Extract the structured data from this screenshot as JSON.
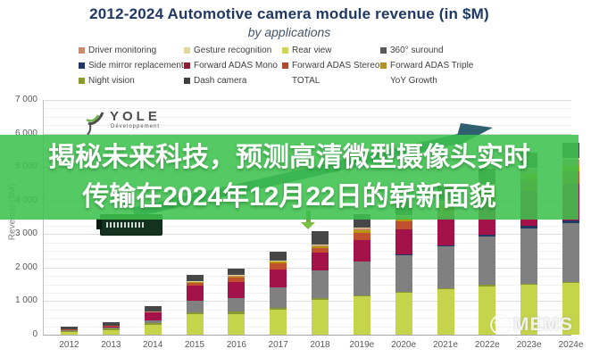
{
  "header": {
    "title": "2012-2024 Automotive camera module revenue (in $M)",
    "subtitle": "by applications"
  },
  "legend": {
    "items": [
      {
        "label": "Driver monitoring",
        "color": "#c98a70"
      },
      {
        "label": "Gesture recognition",
        "color": "#ded9a2"
      },
      {
        "label": "Rear view",
        "color": "#cdd65c"
      },
      {
        "label": "360° suround",
        "color": "#595959"
      },
      {
        "label": "Side mirror replacement",
        "color": "#1f3864"
      },
      {
        "label": "Forward ADAS Mono",
        "color": "#8c2136"
      },
      {
        "label": "Forward ADAS Stereo",
        "color": "#b04a2c"
      },
      {
        "label": "Forward ADAS Triple",
        "color": "#b0912c"
      },
      {
        "label": "Night vision",
        "color": "#8a9a33"
      },
      {
        "label": "Dash camera",
        "color": "#404040"
      },
      {
        "label": "TOTAL",
        "color": null
      },
      {
        "label": "YoY Growth",
        "color": null
      }
    ]
  },
  "axes": {
    "y_title": "Revenue ($M)",
    "y_tick_labels": [
      "0",
      "1 000",
      "2 000",
      "3 000",
      "4 000",
      "5 000",
      "6 000",
      "7 000"
    ],
    "x_tick_labels": [
      "2012",
      "2013",
      "2014",
      "2015",
      "2016",
      "2017",
      "2018",
      "2019e",
      "2020e",
      "2021e",
      "2022e",
      "2023e",
      "2024e"
    ]
  },
  "logo": {
    "name": "YOLE",
    "subtitle": "Développement"
  },
  "overlay": {
    "line1": "揭秘未来科技，预测高清微型摄像头实时",
    "line2": "传输在2024年12月22日的崭新面貌",
    "color": "#3ec24d"
  },
  "watermark": {
    "label": "MEMS"
  },
  "chart_data": {
    "type": "bar",
    "variant": "stacked",
    "title": "2012-2024 Automotive camera module revenue (in $M)",
    "subtitle": "by applications",
    "xlabel": "",
    "ylabel": "Revenue ($M)",
    "ylim": [
      0,
      7000
    ],
    "ytick_interval": 1000,
    "grid": true,
    "legend_position": "top",
    "values_note": "middle of chart hidden by overlay banner; values estimated from visible pixels",
    "categories": [
      "2012",
      "2013",
      "2014",
      "2015",
      "2016",
      "2017",
      "2018",
      "2019e",
      "2020e",
      "2021e",
      "2022e",
      "2023e",
      "2024e"
    ],
    "series": [
      {
        "name": "Rear view",
        "color": "#c5d44b",
        "values": [
          90,
          140,
          290,
          600,
          620,
          750,
          1040,
          1150,
          1250,
          1350,
          1450,
          1500,
          1550
        ]
      },
      {
        "name": "Night vision",
        "color": "#8a9a33",
        "values": [
          40,
          50,
          60,
          70,
          60,
          50,
          40,
          30,
          30,
          30,
          30,
          30,
          30
        ]
      },
      {
        "name": "360° suround",
        "color": "#808080",
        "values": [
          5,
          15,
          80,
          350,
          400,
          600,
          830,
          1000,
          1100,
          1250,
          1450,
          1650,
          1750
        ]
      },
      {
        "name": "Side mirror replacement",
        "color": "#1f3864",
        "values": [
          0,
          0,
          0,
          0,
          0,
          0,
          0,
          0,
          20,
          30,
          40,
          60,
          70
        ]
      },
      {
        "name": "Forward ADAS Mono",
        "color": "#a31248",
        "values": [
          20,
          40,
          230,
          450,
          480,
          550,
          530,
          650,
          750,
          850,
          950,
          1050,
          1100
        ]
      },
      {
        "name": "Forward ADAS Stereo",
        "color": "#c0502e",
        "values": [
          5,
          15,
          30,
          100,
          150,
          180,
          130,
          200,
          230,
          260,
          300,
          350,
          380
        ]
      },
      {
        "name": "Forward ADAS Triple",
        "color": "#b8960c",
        "values": [
          0,
          0,
          5,
          10,
          30,
          50,
          60,
          80,
          90,
          100,
          120,
          140,
          150
        ]
      },
      {
        "name": "Driver monitoring",
        "color": "#c98a70",
        "values": [
          0,
          0,
          5,
          10,
          20,
          30,
          40,
          60,
          80,
          100,
          130,
          160,
          190
        ]
      },
      {
        "name": "Gesture recognition",
        "color": "#ded9a2",
        "values": [
          0,
          0,
          0,
          5,
          10,
          10,
          10,
          20,
          20,
          30,
          30,
          40,
          40
        ]
      },
      {
        "name": "Dash camera",
        "color": "#474747",
        "values": [
          70,
          120,
          160,
          180,
          200,
          250,
          410,
          410,
          420,
          430,
          440,
          450,
          450
        ]
      }
    ],
    "totals_estimated": [
      230,
      380,
      860,
      1775,
      1970,
      2470,
      3090,
      3600,
      3990,
      4430,
      4940,
      5430,
      5710
    ]
  }
}
